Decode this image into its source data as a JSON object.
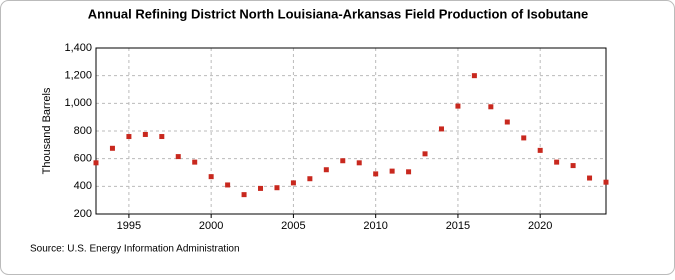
{
  "chart_data": {
    "type": "scatter",
    "title": "Annual Refining District North Louisiana-Arkansas Field Production of Isobutane",
    "y_label": "Thousand Barrels",
    "source": "Source: U.S. Energy Information Administration",
    "x": [
      1993,
      1994,
      1995,
      1996,
      1997,
      1998,
      1999,
      2000,
      2001,
      2002,
      2003,
      2004,
      2005,
      2006,
      2007,
      2008,
      2009,
      2010,
      2011,
      2012,
      2013,
      2014,
      2015,
      2016,
      2017,
      2018,
      2019,
      2020,
      2021,
      2022,
      2023,
      2024
    ],
    "values": [
      570,
      675,
      760,
      775,
      760,
      615,
      575,
      470,
      410,
      340,
      385,
      390,
      425,
      455,
      520,
      585,
      570,
      490,
      510,
      505,
      635,
      815,
      980,
      1200,
      975,
      865,
      750,
      660,
      575,
      550,
      460,
      430
    ],
    "color": "#c8281e",
    "xlim": [
      1993,
      2024
    ],
    "xticks": [
      1995,
      2000,
      2005,
      2010,
      2015,
      2020
    ],
    "ylim": [
      200,
      1400
    ],
    "yticks": [
      200,
      400,
      600,
      800,
      {
        "value": 1000,
        "label": "1,000"
      },
      {
        "value": 1200,
        "label": "1,200"
      },
      {
        "value": 1400,
        "label": "1,400"
      }
    ],
    "grid": true
  }
}
